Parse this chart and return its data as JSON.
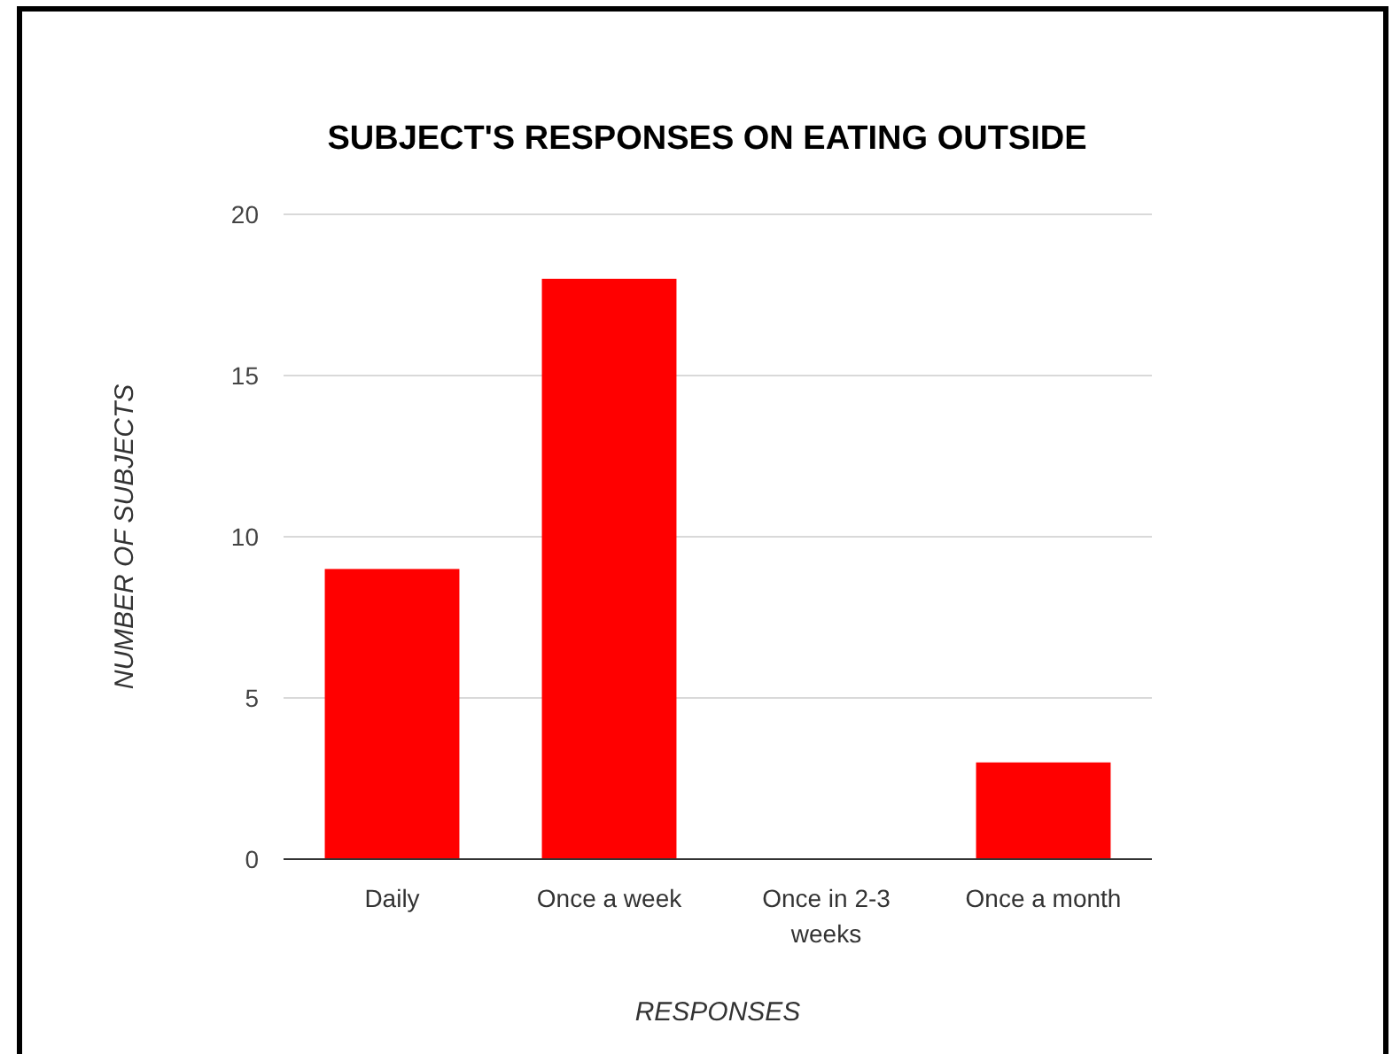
{
  "chart_data": {
    "type": "bar",
    "title": "SUBJECT'S RESPONSES ON EATING OUTSIDE",
    "xlabel": "RESPONSES",
    "ylabel": "NUMBER OF SUBJECTS",
    "categories": [
      "Daily",
      "Once a week",
      "Once in 2-3 weeks",
      "Once a month"
    ],
    "values": [
      9,
      18,
      0,
      3
    ],
    "color": "#ff0000",
    "ylim": [
      0,
      20
    ],
    "yticks": [
      0,
      5,
      10,
      15,
      20
    ],
    "grid": "y"
  }
}
